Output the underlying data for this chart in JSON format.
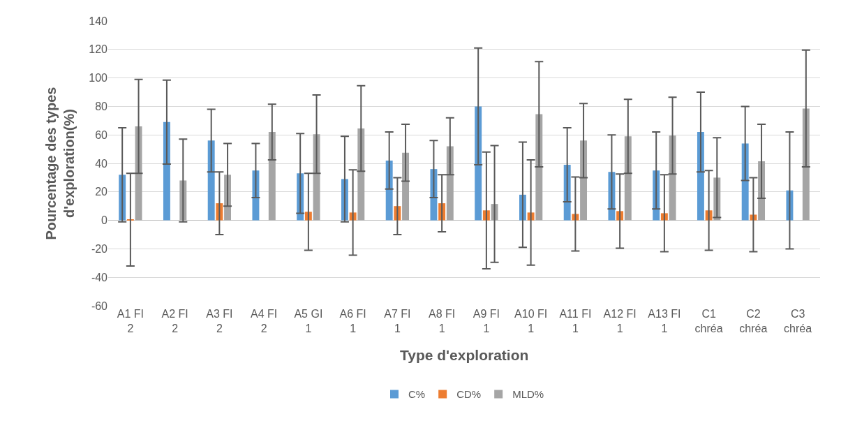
{
  "chart_data": {
    "type": "bar",
    "xlabel": "Type d'exploration",
    "ylabel": "Pourcentage des types d'exploration(%)",
    "categories": [
      "A1 FI 2",
      "A2 FI 2",
      "A3 FI 2",
      "A4 FI 2",
      "A5 GI 1",
      "A6 FI 1",
      "A7 FI 1",
      "A8 FI 1",
      "A9 FI 1",
      "A10 FI 1",
      "A11 FI 1",
      "A12 FI 1",
      "A13 FI 1",
      "C1 chréa",
      "C2 chréa",
      "C3 chréa"
    ],
    "series": [
      {
        "name": "C%",
        "color": "#5b9bd5",
        "values": [
          32,
          69,
          56,
          35,
          33,
          29,
          42,
          36,
          80,
          18,
          39,
          34,
          35,
          62,
          54,
          21
        ],
        "errors": [
          33,
          29.5,
          22,
          19,
          28,
          30,
          20,
          20,
          41,
          37,
          26,
          26,
          27,
          28,
          26,
          41
        ]
      },
      {
        "name": "CD%",
        "color": "#ed7d31",
        "values": [
          0.5,
          null,
          12,
          null,
          6,
          5.5,
          10,
          12,
          7,
          5.5,
          4.5,
          6.5,
          5,
          7,
          4,
          null
        ],
        "errors": [
          32.5,
          null,
          22,
          null,
          27,
          30,
          20,
          20,
          41,
          37,
          26,
          26,
          27,
          28,
          26,
          null
        ]
      },
      {
        "name": "MLD%",
        "color": "#a5a5a5",
        "values": [
          66,
          28,
          32,
          62,
          60.5,
          64.5,
          47.5,
          52,
          11.5,
          74.5,
          56,
          59,
          59.5,
          30,
          41.5,
          78.5
        ],
        "errors": [
          33,
          29,
          22,
          19.5,
          27.5,
          30,
          20,
          20,
          41,
          37,
          26,
          26,
          27,
          28,
          26,
          41
        ]
      }
    ],
    "ylim": [
      -60,
      140
    ],
    "yticks": [
      -60,
      -40,
      -20,
      0,
      20,
      40,
      60,
      80,
      100,
      120,
      140
    ],
    "grid": "y",
    "legend": "bottom"
  }
}
